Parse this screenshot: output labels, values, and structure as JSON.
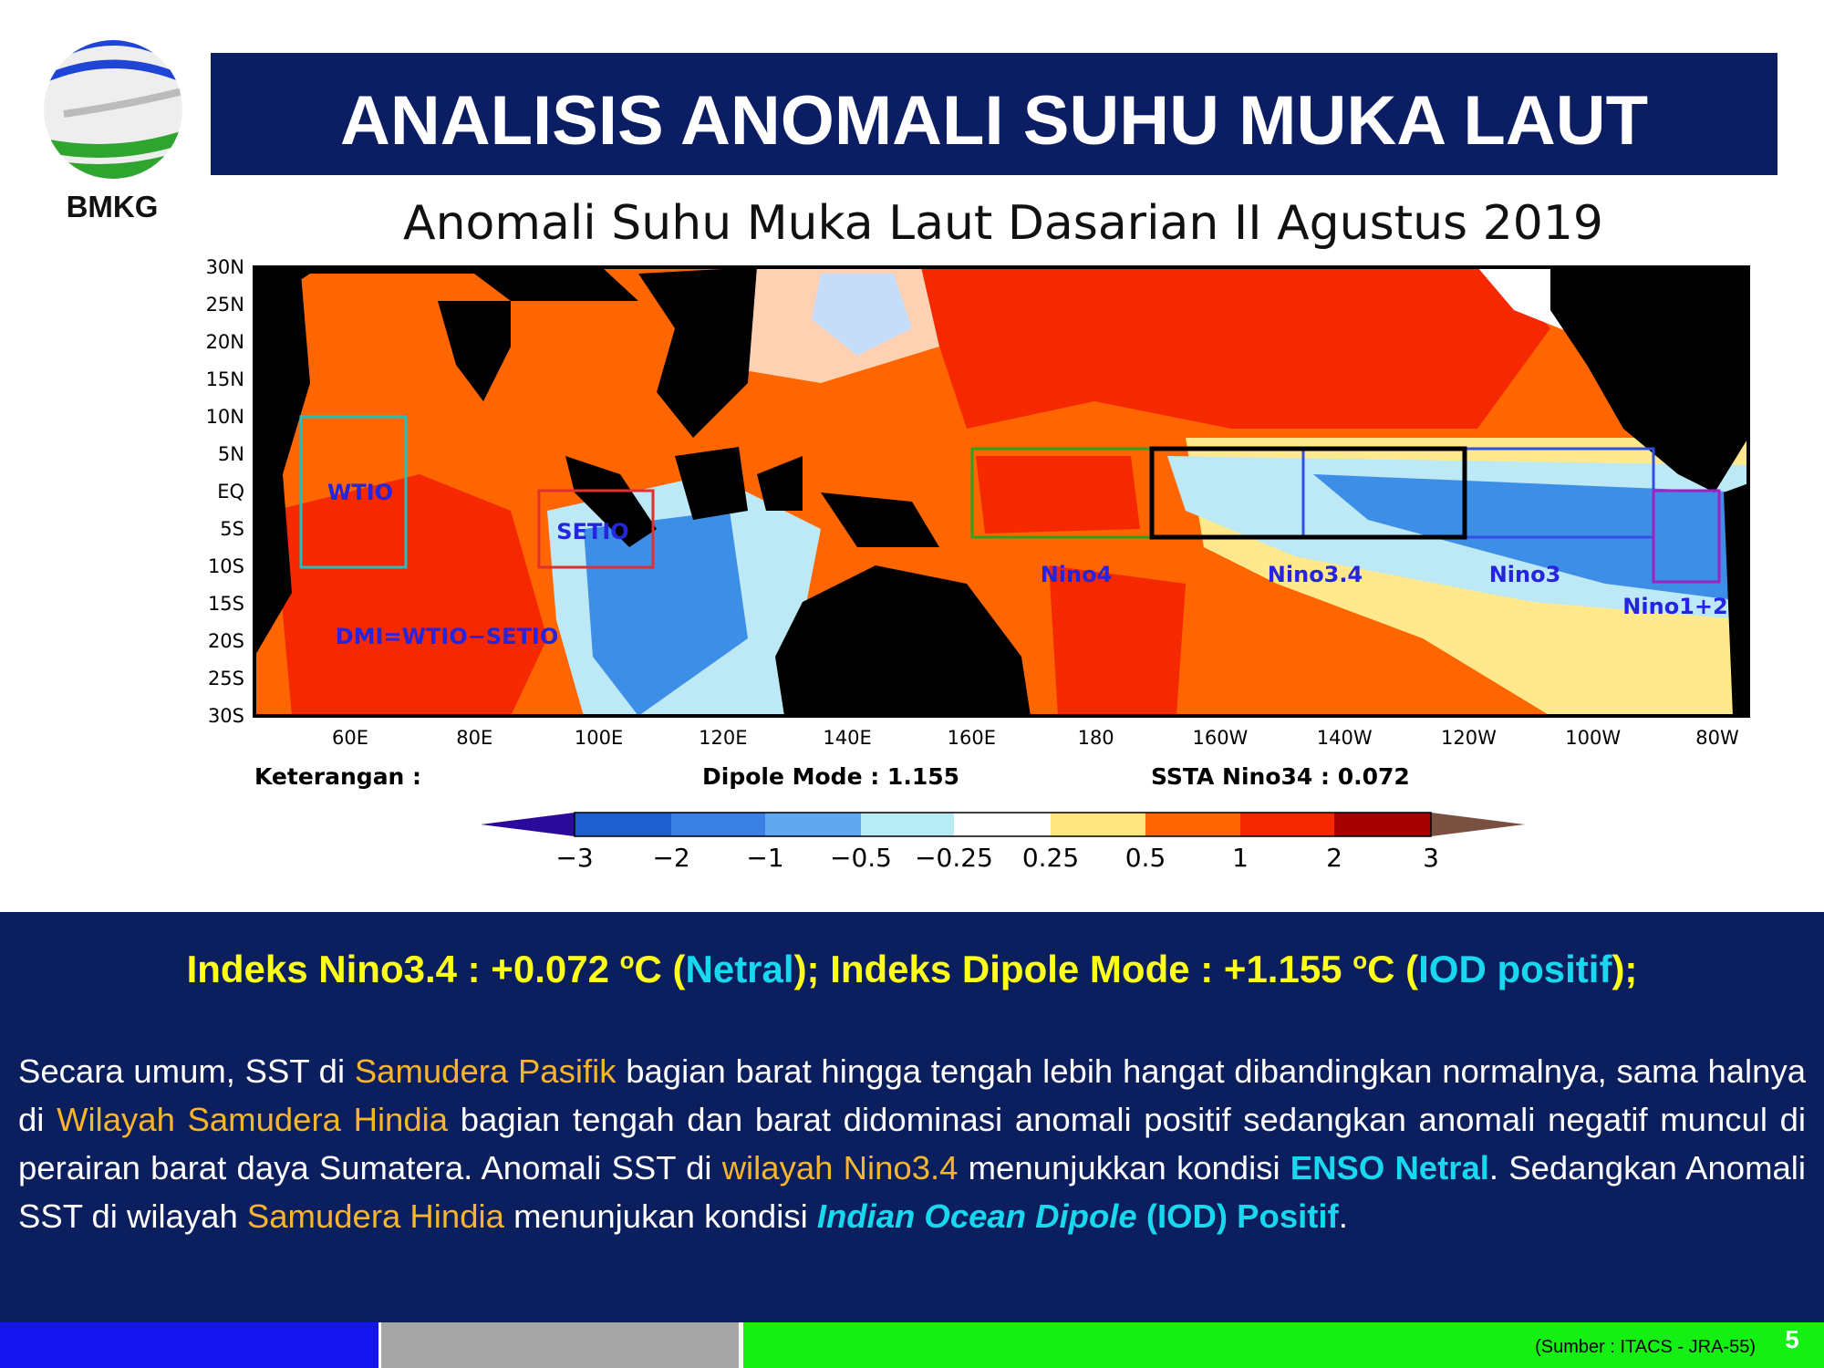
{
  "header": {
    "title": "ANALISIS ANOMALI SUHU MUKA LAUT",
    "logo_text": "BMKG"
  },
  "map": {
    "title": "Anomali Suhu Muka Laut Dasarian II Agustus 2019",
    "lat_labels": [
      "30N",
      "25N",
      "20N",
      "15N",
      "10N",
      "5N",
      "EQ",
      "5S",
      "10S",
      "15S",
      "20S",
      "25S",
      "30S"
    ],
    "lon_labels": [
      "60E",
      "80E",
      "100E",
      "120E",
      "140E",
      "160E",
      "180",
      "160W",
      "140W",
      "120W",
      "100W",
      "80W"
    ],
    "region_labels": [
      "WTIO",
      "SETIO",
      "DMI=WTIO−SETIO",
      "Nino4",
      "Nino3.4",
      "Nino3",
      "Nino1+2"
    ],
    "legend_caption": "Keterangan :",
    "dipole": "Dipole Mode : 1.155",
    "ssta": "SSTA Nino34 : 0.072",
    "colorbar_labels": [
      "−3",
      "−2",
      "−1",
      "−0.5",
      "−0.25",
      "0.25",
      "0.5",
      "1",
      "2",
      "3"
    ]
  },
  "summary": {
    "indices": [
      "Indeks Nino3.4 : +0.072 ",
      "o",
      "C (",
      "Netral",
      ");  Indeks Dipole Mode : +1.155 ",
      "o",
      "C (",
      "IOD positif",
      ");"
    ],
    "paragraph": [
      "Secara umum, SST di ",
      "Samudera Pasifik",
      " bagian barat hingga tengah lebih hangat dibandingkan normalnya, sama halnya di ",
      "Wilayah Samudera Hindia",
      " bagian tengah dan barat didominasi anomali positif sedangkan anomali negatif muncul di perairan barat daya Sumatera. Anomali SST di ",
      "wilayah Nino3.4",
      " menunjukkan kondisi ",
      "ENSO Netral",
      ". Sedangkan Anomali SST di wilayah ",
      "Samudera Hindia",
      " menunjukan kondisi ",
      "Indian Ocean Dipole",
      " (IOD) Positif",
      "."
    ]
  },
  "footer": {
    "source": "(Sumber : ITACS - JRA-55)",
    "page": "5"
  }
}
